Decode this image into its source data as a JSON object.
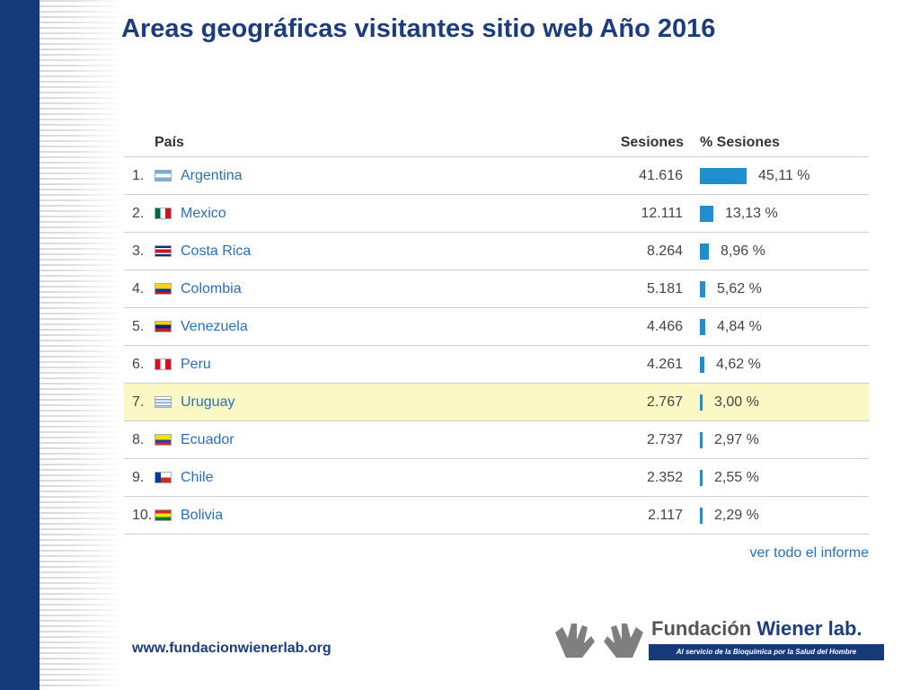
{
  "slide": {
    "title": "Areas geográficas visitantes sitio web Año 2016",
    "website": "www.fundacionwienerlab.org"
  },
  "table": {
    "headers": {
      "country": "País",
      "sessions": "Sesiones",
      "percent": "% Sesiones"
    },
    "rows": [
      {
        "rank": "1.",
        "country": "Argentina",
        "sessions": "41.616",
        "percent": "45,11 %",
        "share": 45.11
      },
      {
        "rank": "2.",
        "country": "Mexico",
        "sessions": "12.111",
        "percent": "13,13 %",
        "share": 13.13
      },
      {
        "rank": "3.",
        "country": "Costa Rica",
        "sessions": "8.264",
        "percent": "8,96 %",
        "share": 8.96
      },
      {
        "rank": "4.",
        "country": "Colombia",
        "sessions": "5.181",
        "percent": "5,62 %",
        "share": 5.62
      },
      {
        "rank": "5.",
        "country": "Venezuela",
        "sessions": "4.466",
        "percent": "4,84 %",
        "share": 4.84
      },
      {
        "rank": "6.",
        "country": "Peru",
        "sessions": "4.261",
        "percent": "4,62 %",
        "share": 4.62
      },
      {
        "rank": "7.",
        "country": "Uruguay",
        "sessions": "2.767",
        "percent": "3,00 %",
        "share": 3.0
      },
      {
        "rank": "8.",
        "country": "Ecuador",
        "sessions": "2.737",
        "percent": "2,97 %",
        "share": 2.97
      },
      {
        "rank": "9.",
        "country": "Chile",
        "sessions": "2.352",
        "percent": "2,55 %",
        "share": 2.55
      },
      {
        "rank": "10.",
        "country": "Bolivia",
        "sessions": "2.117",
        "percent": "2,29 %",
        "share": 2.29
      }
    ],
    "highlighted_row": 6,
    "view_full_report": "ver todo el informe"
  },
  "logo": {
    "name_part1": "Fundación ",
    "name_part2": "Wiener lab.",
    "tagline": "Al servicio de la Bioquímica por la Salud del Hombre",
    "icon": "hands-logo-icon"
  },
  "colors": {
    "title": "#1c3c7c",
    "link": "#2a6fb5",
    "bar": "#1f8fd0",
    "highlight": "#fbf8c6",
    "side_band": "#163a78"
  }
}
